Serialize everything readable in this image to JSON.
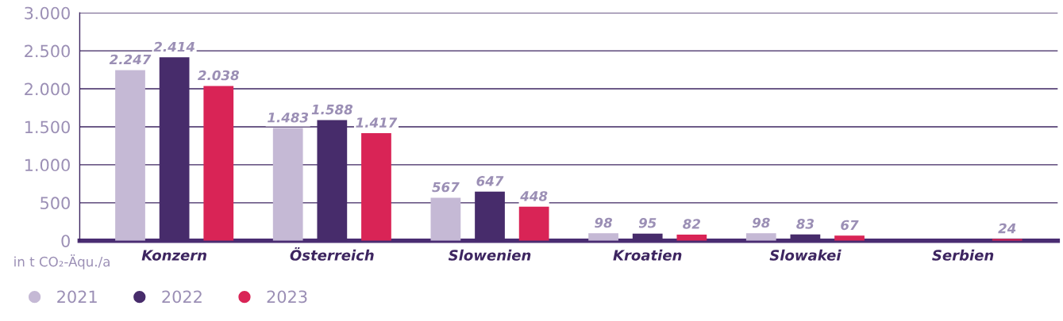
{
  "chart_data": {
    "type": "bar",
    "ylabel": "in t CO₂-Äqu./a",
    "categories": [
      "Konzern",
      "Österreich",
      "Slowenien",
      "Kroatien",
      "Slowakei",
      "Serbien"
    ],
    "series": [
      {
        "name": "2021",
        "color": "#c5b9d5",
        "values": [
          2247,
          1483,
          567,
          98,
          98,
          null
        ],
        "value_labels": [
          "2.247",
          "1.483",
          "567",
          "98",
          "98",
          null
        ]
      },
      {
        "name": "2022",
        "color": "#472c6b",
        "values": [
          2414,
          1588,
          647,
          95,
          83,
          null
        ],
        "value_labels": [
          "2.414",
          "1.588",
          "647",
          "95",
          "83",
          null
        ]
      },
      {
        "name": "2023",
        "color": "#d92456",
        "values": [
          2038,
          1417,
          448,
          82,
          67,
          24
        ],
        "value_labels": [
          "2.038",
          "1.417",
          "448",
          "82",
          "67",
          "24"
        ]
      }
    ],
    "ylim": [
      0,
      3000
    ],
    "yticks": [
      {
        "value": 0,
        "label": "0"
      },
      {
        "value": 500,
        "label": "500"
      },
      {
        "value": 1000,
        "label": "1.000"
      },
      {
        "value": 1500,
        "label": "1.500"
      },
      {
        "value": 2000,
        "label": "2.000"
      },
      {
        "value": 2500,
        "label": "2.500"
      },
      {
        "value": 3000,
        "label": "3.000"
      }
    ],
    "grid": "y",
    "legend": "bottom left"
  }
}
